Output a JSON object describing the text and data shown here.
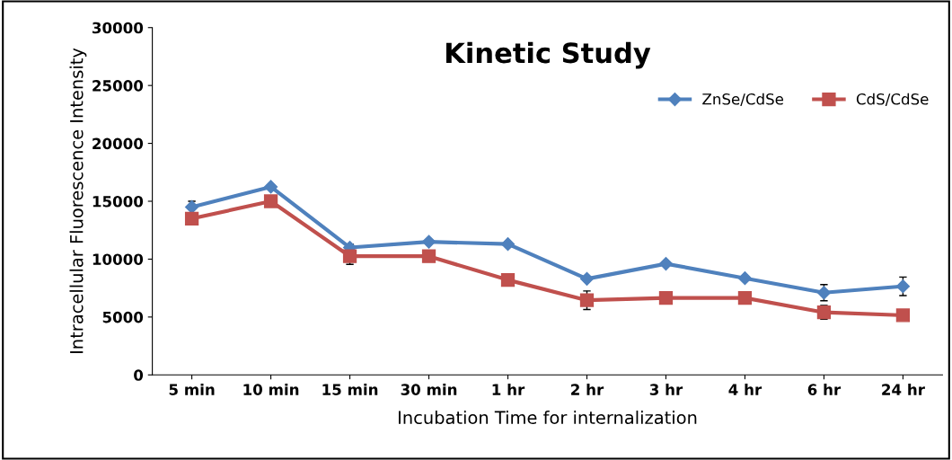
{
  "chart_data": {
    "type": "line",
    "title": "Kinetic Study",
    "xlabel": "Incubation Time for internalization",
    "ylabel": "Intracellular Fluorescence Intensity",
    "categories": [
      "5 min",
      "10 min",
      "15 min",
      "30 min",
      "1 hr",
      "2 hr",
      "3 hr",
      "4 hr",
      "6 hr",
      "24 hr"
    ],
    "series": [
      {
        "name": "ZnSe/CdSe",
        "color": "#4f81bd",
        "marker": "diamond",
        "values": [
          14500,
          16250,
          11000,
          11500,
          11300,
          8300,
          9600,
          8350,
          7100,
          7650
        ],
        "errors": [
          500,
          null,
          300,
          null,
          null,
          null,
          null,
          null,
          700,
          800
        ]
      },
      {
        "name": "CdS/CdSe",
        "color": "#c0504d",
        "marker": "square",
        "values": [
          13500,
          15000,
          10250,
          10250,
          8200,
          6450,
          6650,
          6650,
          5400,
          5150
        ],
        "errors": [
          null,
          null,
          700,
          null,
          null,
          800,
          null,
          null,
          600,
          null
        ]
      }
    ],
    "ylim": [
      0,
      30000
    ],
    "yticks": [
      0,
      5000,
      10000,
      15000,
      20000,
      25000,
      30000
    ],
    "grid": false,
    "legend": "top right",
    "line_style": "solid"
  }
}
